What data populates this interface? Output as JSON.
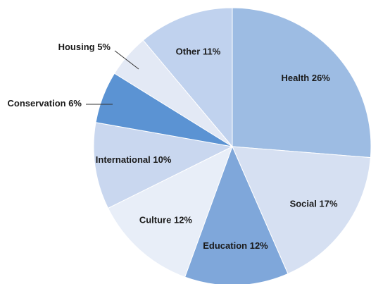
{
  "chart_data": {
    "type": "pie",
    "categories": [
      "Health",
      "Social",
      "Education",
      "Culture",
      "International",
      "Conservation",
      "Housing",
      "Other"
    ],
    "values": [
      26,
      17,
      12,
      12,
      10,
      6,
      5,
      11
    ],
    "value_labels": [
      "26%",
      "17%",
      "12%",
      "12%",
      "10%",
      "6%",
      "5%",
      "11%"
    ],
    "colors": [
      "#9dbce3",
      "#d6e0f2",
      "#7fa7da",
      "#e8eef8",
      "#c9d7ef",
      "#5b93d3",
      "#e3e9f5",
      "#c0d2ee"
    ]
  }
}
